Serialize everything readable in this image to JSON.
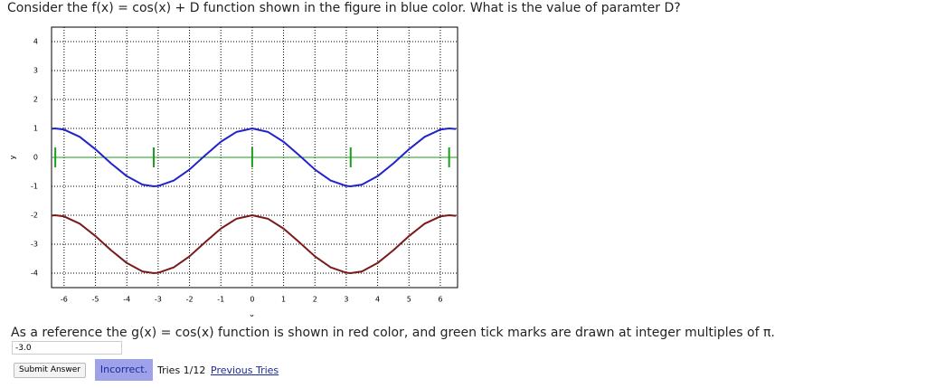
{
  "question": "Consider the f(x) = cos(x) + D function shown in the figure in blue color. What is the value of paramter D?",
  "chart_data": {
    "type": "line",
    "x_label": "x",
    "y_label": "y",
    "x": [
      -6.4,
      -6.28,
      -6,
      -5.5,
      -5,
      -4.5,
      -4,
      -3.5,
      -3.14,
      -3,
      -2.5,
      -2,
      -1.5,
      -1,
      -0.5,
      0,
      0.5,
      1,
      1.5,
      2,
      2.5,
      3,
      3.14,
      3.5,
      4,
      4.5,
      5,
      5.5,
      6,
      6.28,
      6.5
    ],
    "series": [
      {
        "color": "#2222cc",
        "values": [
          0.99,
          1,
          0.96,
          0.71,
          0.28,
          -0.21,
          -0.65,
          -0.94,
          -1,
          -0.99,
          -0.8,
          -0.42,
          0.07,
          0.54,
          0.88,
          1,
          0.88,
          0.54,
          0.07,
          -0.42,
          -0.8,
          -0.99,
          -1,
          -0.94,
          -0.65,
          -0.21,
          0.28,
          0.71,
          0.96,
          1,
          0.98
        ]
      },
      {
        "color": "#7a1a1a",
        "values": [
          -2.01,
          -2,
          -2.04,
          -2.29,
          -2.72,
          -3.21,
          -3.65,
          -3.94,
          -4,
          -3.99,
          -3.8,
          -3.42,
          -2.93,
          -2.46,
          -2.12,
          -2,
          -2.12,
          -2.46,
          -2.93,
          -3.42,
          -3.8,
          -3.99,
          -4,
          -3.94,
          -3.65,
          -3.21,
          -2.72,
          -2.29,
          -2.04,
          -2,
          -2.02
        ]
      }
    ],
    "reference_line": {
      "y": 0,
      "color": "#1a9e1a",
      "ticks_x": [
        -6.28,
        -3.14,
        0,
        3.14,
        6.28
      ]
    },
    "xlim": [
      -6.4,
      6.55
    ],
    "ylim": [
      -4.5,
      4.5
    ],
    "xticks": [
      -6,
      -5,
      -4,
      -3,
      -2,
      -1,
      0,
      1,
      2,
      3,
      4,
      5,
      6
    ],
    "yticks": [
      -4,
      -3,
      -2,
      -1,
      0,
      1,
      2,
      3,
      4
    ],
    "grid": true
  },
  "note": "As a reference the g(x) = cos(x) function is shown in red color, and green tick marks are drawn at integer multiples of π.",
  "answer": "-3.0",
  "submit": "Submit Answer",
  "status": "Incorrect.",
  "tries": "Tries 1/12",
  "previous": "Previous Tries"
}
